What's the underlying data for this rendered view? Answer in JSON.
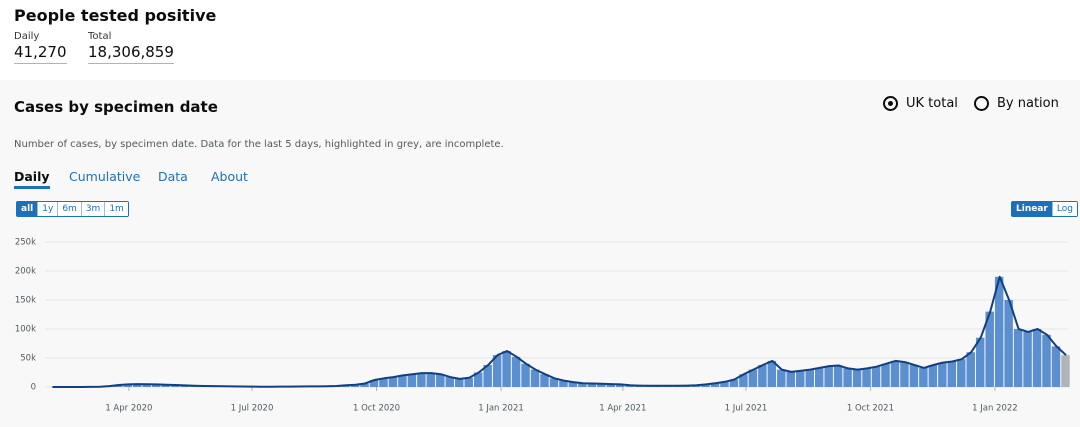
{
  "header": {
    "title": "People tested positive",
    "daily_label": "Daily",
    "daily_value": "41,270",
    "total_label": "Total",
    "total_value": "18,306,859"
  },
  "card": {
    "title": "Cases by specimen date",
    "options": [
      "UK total",
      "By nation"
    ],
    "description": "Number of cases, by specimen date. Data for the last 5 days, highlighted in grey, are incomplete.",
    "tabs": [
      "Daily",
      "Cumulative",
      "Data",
      "About"
    ],
    "ranges": [
      "all",
      "1y",
      "6m",
      "3m",
      "1m"
    ],
    "scales": [
      "Linear",
      "Log"
    ]
  },
  "chart_data": {
    "type": "bar",
    "x": [
      "2020-02-01",
      "2020-02-08",
      "2020-02-15",
      "2020-02-22",
      "2020-02-29",
      "2020-03-07",
      "2020-03-14",
      "2020-03-21",
      "2020-03-28",
      "2020-04-04",
      "2020-04-11",
      "2020-04-18",
      "2020-04-25",
      "2020-05-02",
      "2020-05-09",
      "2020-05-16",
      "2020-05-23",
      "2020-05-30",
      "2020-06-06",
      "2020-06-13",
      "2020-06-20",
      "2020-06-27",
      "2020-07-04",
      "2020-07-11",
      "2020-07-18",
      "2020-07-25",
      "2020-08-01",
      "2020-08-08",
      "2020-08-15",
      "2020-08-22",
      "2020-08-29",
      "2020-09-05",
      "2020-09-12",
      "2020-09-19",
      "2020-09-26",
      "2020-10-03",
      "2020-10-10",
      "2020-10-17",
      "2020-10-24",
      "2020-10-31",
      "2020-11-07",
      "2020-11-14",
      "2020-11-21",
      "2020-11-28",
      "2020-12-05",
      "2020-12-12",
      "2020-12-19",
      "2020-12-26",
      "2021-01-02",
      "2021-01-09",
      "2021-01-16",
      "2021-01-23",
      "2021-01-30",
      "2021-02-06",
      "2021-02-13",
      "2021-02-20",
      "2021-02-27",
      "2021-03-06",
      "2021-03-13",
      "2021-03-20",
      "2021-03-27",
      "2021-04-03",
      "2021-04-10",
      "2021-04-17",
      "2021-04-24",
      "2021-05-01",
      "2021-05-08",
      "2021-05-15",
      "2021-05-22",
      "2021-05-29",
      "2021-06-05",
      "2021-06-12",
      "2021-06-19",
      "2021-06-26",
      "2021-07-03",
      "2021-07-10",
      "2021-07-17",
      "2021-07-24",
      "2021-07-31",
      "2021-08-07",
      "2021-08-14",
      "2021-08-21",
      "2021-08-28",
      "2021-09-04",
      "2021-09-11",
      "2021-09-18",
      "2021-09-25",
      "2021-10-02",
      "2021-10-09",
      "2021-10-16",
      "2021-10-23",
      "2021-10-30",
      "2021-11-06",
      "2021-11-13",
      "2021-11-20",
      "2021-11-27",
      "2021-12-04",
      "2021-12-11",
      "2021-12-18",
      "2021-12-25",
      "2022-01-01",
      "2022-01-08",
      "2022-01-15",
      "2022-01-22",
      "2022-01-29",
      "2022-02-05",
      "2022-02-12",
      "2022-02-19"
    ],
    "values": [
      0,
      0,
      0,
      0,
      100,
      500,
      1500,
      3500,
      4500,
      5000,
      4800,
      4500,
      4000,
      3500,
      2800,
      2300,
      1800,
      1500,
      1200,
      1000,
      800,
      700,
      600,
      600,
      650,
      750,
      900,
      1000,
      1100,
      1300,
      1800,
      3000,
      4000,
      6000,
      12000,
      15000,
      17000,
      20000,
      22000,
      24000,
      24000,
      22000,
      17000,
      14000,
      16000,
      25000,
      38000,
      55000,
      62000,
      52000,
      40000,
      30000,
      22000,
      15000,
      11000,
      8500,
      6500,
      6000,
      5500,
      5000,
      4500,
      3000,
      2500,
      2300,
      2200,
      2100,
      2200,
      2500,
      3000,
      4500,
      6500,
      9000,
      13000,
      22000,
      30000,
      38000,
      45000,
      30000,
      26000,
      28000,
      30000,
      33000,
      36000,
      37000,
      32000,
      30000,
      32000,
      35000,
      40000,
      45000,
      43000,
      38000,
      33000,
      38000,
      42000,
      44000,
      48000,
      60000,
      85000,
      130000,
      190000,
      150000,
      100000,
      95000,
      100000,
      90000,
      70000,
      55000
    ],
    "bar_color": "#5b8fd0",
    "line_color": "#12407f",
    "incomplete_color": "#b1b4b6",
    "incomplete_from": "2022-02-19",
    "xlim": [
      "2020-01-30",
      "2022-02-24"
    ],
    "xticks": [
      {
        "value": "2020-04-01",
        "label": "1 Apr 2020"
      },
      {
        "value": "2020-07-01",
        "label": "1 Jul 2020"
      },
      {
        "value": "2020-10-01",
        "label": "1 Oct 2020"
      },
      {
        "value": "2021-01-01",
        "label": "1 Jan 2021"
      },
      {
        "value": "2021-04-01",
        "label": "1 Apr 2021"
      },
      {
        "value": "2021-07-01",
        "label": "1 Jul 2021"
      },
      {
        "value": "2021-10-01",
        "label": "1 Oct 2021"
      },
      {
        "value": "2022-01-01",
        "label": "1 Jan 2022"
      }
    ],
    "ylim": [
      0,
      250000
    ],
    "yticks": [
      0,
      {
        "value": 50000,
        "label": "50k"
      },
      {
        "value": 100000,
        "label": "100k"
      },
      {
        "value": 150000,
        "label": "150k"
      },
      {
        "value": 200000,
        "label": "200k"
      },
      {
        "value": 250000,
        "label": "250k"
      }
    ],
    "grid": true
  }
}
